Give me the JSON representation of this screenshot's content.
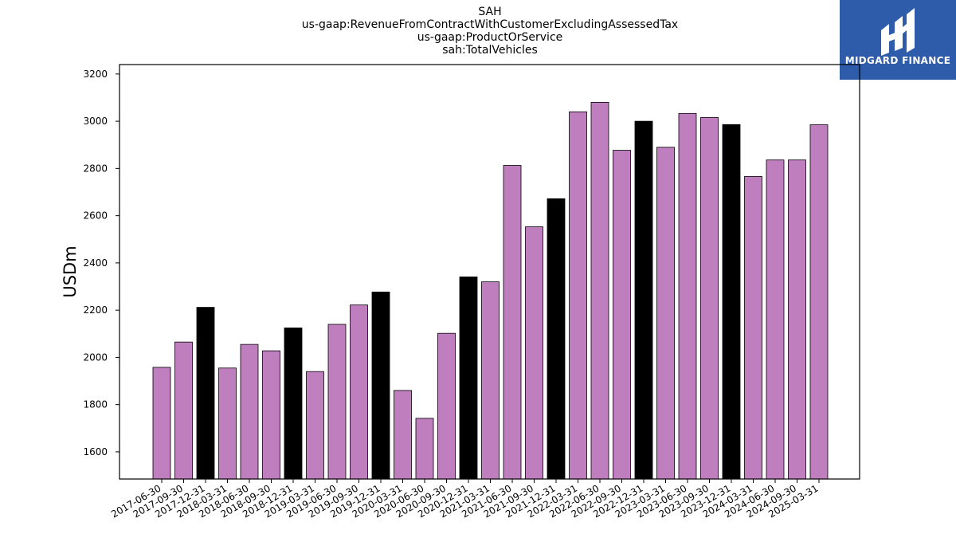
{
  "title_lines": [
    "SAH",
    "us-gaap:RevenueFromContractWithCustomerExcludingAssessedTax",
    "us-gaap:ProductOrService",
    "sah:TotalVehicles"
  ],
  "logo": {
    "text": "MIDGARD FINANCE",
    "color": "#2e5cab",
    "icon": "midgard-logo-icon"
  },
  "chart_data": {
    "type": "bar",
    "title": "SAH",
    "xlabel": "",
    "ylabel": "USDm",
    "ylim": [
      1485,
      3240
    ],
    "yticks": [
      1600,
      1800,
      2000,
      2200,
      2400,
      2600,
      2800,
      3000,
      3200
    ],
    "grid": false,
    "colors": {
      "quarter": "#bf7fbf",
      "year_end": "#000000",
      "edge": "#000000"
    },
    "categories": [
      "2017-06-30",
      "2017-09-30",
      "2017-12-31",
      "2018-03-31",
      "2018-06-30",
      "2018-09-30",
      "2018-12-31",
      "2019-03-31",
      "2019-06-30",
      "2019-09-30",
      "2019-12-31",
      "2020-03-31",
      "2020-06-30",
      "2020-09-30",
      "2020-12-31",
      "2021-03-31",
      "2021-06-30",
      "2021-09-30",
      "2021-12-31",
      "2022-03-31",
      "2022-06-30",
      "2022-09-30",
      "2022-12-31",
      "2023-03-31",
      "2023-06-30",
      "2023-09-30",
      "2023-12-31",
      "2024-03-31",
      "2024-06-30",
      "2024-09-30",
      "2025-03-31"
    ],
    "values": [
      1958,
      2065,
      2212,
      1955,
      2055,
      2028,
      2125,
      1940,
      2140,
      2222,
      2277,
      1860,
      1742,
      2102,
      2341,
      2320,
      2813,
      2553,
      2672,
      3040,
      3080,
      2877,
      3000,
      2890,
      3033,
      3016,
      2986,
      2766,
      2836,
      2836,
      2985
    ],
    "highlight": [
      false,
      false,
      true,
      false,
      false,
      false,
      true,
      false,
      false,
      false,
      true,
      false,
      false,
      false,
      true,
      false,
      false,
      false,
      true,
      false,
      false,
      false,
      true,
      false,
      false,
      false,
      true,
      false,
      false,
      false,
      false
    ]
  }
}
